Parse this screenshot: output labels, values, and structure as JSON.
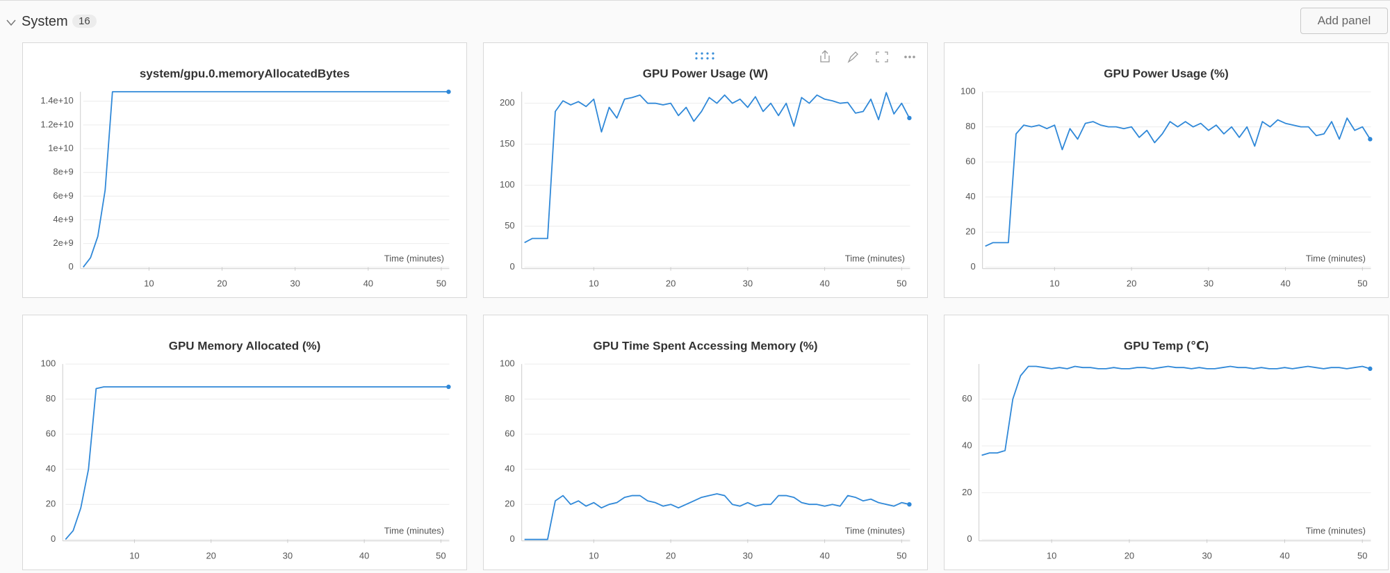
{
  "header": {
    "title": "System",
    "count": 16,
    "button": "Add panel"
  },
  "chart_data": [
    {
      "type": "line",
      "title": "system/gpu.0.memoryAllocatedBytes",
      "x_label": "Time (minutes)",
      "color": "#2f88d8",
      "grid": true,
      "x": [
        1,
        2,
        3,
        4,
        5,
        6,
        7,
        8,
        9,
        10,
        11,
        12,
        13,
        14,
        15,
        16,
        17,
        18,
        19,
        20,
        21,
        22,
        23,
        24,
        25,
        26,
        27,
        28,
        29,
        30,
        31,
        32,
        33,
        34,
        35,
        36,
        37,
        38,
        39,
        40,
        41,
        42,
        43,
        44,
        45,
        46,
        47,
        48,
        49,
        50,
        51
      ],
      "values": [
        0,
        800000000,
        2600000000,
        6500000000,
        14800000000,
        14800000000,
        14800000000,
        14800000000,
        14800000000,
        14800000000,
        14800000000,
        14800000000,
        14800000000,
        14800000000,
        14800000000,
        14800000000,
        14800000000,
        14800000000,
        14800000000,
        14800000000,
        14800000000,
        14800000000,
        14800000000,
        14800000000,
        14800000000,
        14800000000,
        14800000000,
        14800000000,
        14800000000,
        14800000000,
        14800000000,
        14800000000,
        14800000000,
        14800000000,
        14800000000,
        14800000000,
        14800000000,
        14800000000,
        14800000000,
        14800000000,
        14800000000,
        14800000000,
        14800000000,
        14800000000,
        14800000000,
        14800000000,
        14800000000,
        14800000000,
        14800000000,
        14800000000,
        14800000000
      ],
      "xlim": [
        1,
        51.1
      ],
      "ylim": [
        0,
        14800000000
      ],
      "xticks": [
        10,
        20,
        30,
        40,
        50
      ],
      "yticks": [
        0,
        {
          "value": 2000000000,
          "label": "2e+9"
        },
        {
          "value": 4000000000,
          "label": "4e+9"
        },
        {
          "value": 6000000000,
          "label": "6e+9"
        },
        {
          "value": 8000000000,
          "label": "8e+9"
        },
        {
          "value": 10000000000,
          "label": "1e+10"
        },
        {
          "value": 12000000000,
          "label": "1.2e+10"
        },
        {
          "value": 14000000000,
          "label": "1.4e+10"
        }
      ]
    },
    {
      "type": "line",
      "title": "GPU Power Usage (W)",
      "x_label": "Time (minutes)",
      "color": "#2f88d8",
      "grid": true,
      "x": [
        1,
        2,
        3,
        4,
        5,
        6,
        7,
        8,
        9,
        10,
        11,
        12,
        13,
        14,
        15,
        16,
        17,
        18,
        19,
        20,
        21,
        22,
        23,
        24,
        25,
        26,
        27,
        28,
        29,
        30,
        31,
        32,
        33,
        34,
        35,
        36,
        37,
        38,
        39,
        40,
        41,
        42,
        43,
        44,
        45,
        46,
        47,
        48,
        49,
        50,
        51
      ],
      "values": [
        30,
        35,
        35,
        35,
        190,
        203,
        198,
        202,
        196,
        205,
        165,
        195,
        182,
        205,
        207,
        210,
        200,
        200,
        198,
        200,
        185,
        195,
        178,
        190,
        207,
        200,
        210,
        200,
        205,
        195,
        208,
        190,
        200,
        185,
        200,
        172,
        207,
        200,
        210,
        205,
        203,
        200,
        201,
        188,
        190,
        205,
        180,
        213,
        187,
        200,
        182
      ],
      "xlim": [
        1,
        51.1
      ],
      "ylim": [
        0,
        214
      ],
      "xticks": [
        10,
        20,
        30,
        40,
        50
      ],
      "yticks": [
        0,
        50,
        100,
        150,
        200
      ]
    },
    {
      "type": "line",
      "title": "GPU Power Usage (%)",
      "x_label": "Time (minutes)",
      "color": "#2f88d8",
      "grid": true,
      "x": [
        1,
        2,
        3,
        4,
        5,
        6,
        7,
        8,
        9,
        10,
        11,
        12,
        13,
        14,
        15,
        16,
        17,
        18,
        19,
        20,
        21,
        22,
        23,
        24,
        25,
        26,
        27,
        28,
        29,
        30,
        31,
        32,
        33,
        34,
        35,
        36,
        37,
        38,
        39,
        40,
        41,
        42,
        43,
        44,
        45,
        46,
        47,
        48,
        49,
        50,
        51
      ],
      "values": [
        12,
        14,
        14,
        14,
        76,
        81,
        80,
        81,
        79,
        81,
        67,
        79,
        73,
        82,
        83,
        81,
        80,
        80,
        79,
        80,
        74,
        78,
        71,
        76,
        83,
        80,
        83,
        80,
        82,
        78,
        81,
        76,
        80,
        74,
        80,
        69,
        83,
        80,
        84,
        82,
        81,
        80,
        80,
        75,
        76,
        83,
        73,
        85,
        78,
        80,
        73
      ],
      "xlim": [
        1,
        51.1
      ],
      "ylim": [
        0,
        100
      ],
      "xticks": [
        10,
        20,
        30,
        40,
        50
      ],
      "yticks": [
        0,
        20,
        40,
        60,
        80,
        100
      ]
    },
    {
      "type": "line",
      "title": "GPU Memory Allocated (%)",
      "x_label": "Time (minutes)",
      "color": "#2f88d8",
      "grid": true,
      "x": [
        1,
        2,
        3,
        4,
        5,
        6,
        7,
        8,
        9,
        10,
        11,
        12,
        13,
        14,
        15,
        16,
        17,
        18,
        19,
        20,
        21,
        22,
        23,
        24,
        25,
        26,
        27,
        28,
        29,
        30,
        31,
        32,
        33,
        34,
        35,
        36,
        37,
        38,
        39,
        40,
        41,
        42,
        43,
        44,
        45,
        46,
        47,
        48,
        49,
        50,
        51
      ],
      "values": [
        0,
        5,
        18,
        40,
        86,
        87,
        87,
        87,
        87,
        87,
        87,
        87,
        87,
        87,
        87,
        87,
        87,
        87,
        87,
        87,
        87,
        87,
        87,
        87,
        87,
        87,
        87,
        87,
        87,
        87,
        87,
        87,
        87,
        87,
        87,
        87,
        87,
        87,
        87,
        87,
        87,
        87,
        87,
        87,
        87,
        87,
        87,
        87,
        87,
        87,
        87
      ],
      "xlim": [
        1,
        51.1
      ],
      "ylim": [
        0,
        100
      ],
      "xticks": [
        10,
        20,
        30,
        40,
        50
      ],
      "yticks": [
        0,
        20,
        40,
        60,
        80,
        100
      ]
    },
    {
      "type": "line",
      "title": "GPU Time Spent Accessing Memory (%)",
      "x_label": "Time (minutes)",
      "color": "#2f88d8",
      "grid": true,
      "x": [
        1,
        2,
        3,
        4,
        5,
        6,
        7,
        8,
        9,
        10,
        11,
        12,
        13,
        14,
        15,
        16,
        17,
        18,
        19,
        20,
        21,
        22,
        23,
        24,
        25,
        26,
        27,
        28,
        29,
        30,
        31,
        32,
        33,
        34,
        35,
        36,
        37,
        38,
        39,
        40,
        41,
        42,
        43,
        44,
        45,
        46,
        47,
        48,
        49,
        50,
        51
      ],
      "values": [
        0,
        0,
        0,
        0,
        22,
        25,
        20,
        22,
        19,
        21,
        18,
        20,
        21,
        24,
        25,
        25,
        22,
        21,
        19,
        20,
        18,
        20,
        22,
        24,
        25,
        26,
        25,
        20,
        19,
        21,
        19,
        20,
        20,
        25,
        25,
        24,
        21,
        20,
        20,
        19,
        20,
        19,
        25,
        24,
        22,
        23,
        21,
        20,
        19,
        21,
        20
      ],
      "xlim": [
        1,
        51.1
      ],
      "ylim": [
        0,
        100
      ],
      "xticks": [
        10,
        20,
        30,
        40,
        50
      ],
      "yticks": [
        0,
        20,
        40,
        60,
        80,
        100
      ]
    },
    {
      "type": "line",
      "title": "GPU Temp (℃)",
      "x_label": "Time (minutes)",
      "color": "#2f88d8",
      "grid": true,
      "x": [
        1,
        2,
        3,
        4,
        5,
        6,
        7,
        8,
        9,
        10,
        11,
        12,
        13,
        14,
        15,
        16,
        17,
        18,
        19,
        20,
        21,
        22,
        23,
        24,
        25,
        26,
        27,
        28,
        29,
        30,
        31,
        32,
        33,
        34,
        35,
        36,
        37,
        38,
        39,
        40,
        41,
        42,
        43,
        44,
        45,
        46,
        47,
        48,
        49,
        50,
        51
      ],
      "values": [
        36,
        37,
        37,
        38,
        60,
        70,
        74,
        74,
        73.5,
        73,
        73.5,
        73,
        74,
        73.5,
        73.5,
        73,
        73,
        73.5,
        73,
        73,
        73.5,
        73.5,
        73,
        73.5,
        74,
        73.5,
        73.5,
        73,
        73.5,
        73,
        73,
        73.5,
        74,
        73.5,
        73.5,
        73,
        73.5,
        73,
        73,
        73.5,
        73,
        73.5,
        74,
        73.5,
        73,
        73.5,
        73.5,
        73,
        73.5,
        74,
        73
      ],
      "xlim": [
        1,
        51.1
      ],
      "ylim": [
        0,
        75
      ],
      "xticks": [
        10,
        20,
        30,
        40,
        50
      ],
      "yticks": [
        0,
        20,
        40,
        60
      ]
    }
  ]
}
